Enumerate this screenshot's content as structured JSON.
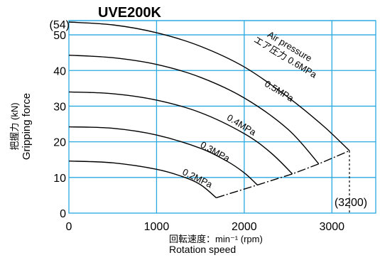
{
  "chart_data": {
    "type": "line",
    "title": "UVE200K",
    "xlabel_lines": [
      "回転速度：min⁻¹ (rpm)",
      "Rotation speed"
    ],
    "ylabel_lines": [
      "把握力 (kN)",
      "Gripping force"
    ],
    "xlim": [
      0,
      3500
    ],
    "ylim": [
      0,
      54
    ],
    "x_ticks": [
      0,
      1000,
      2000,
      3000
    ],
    "x_tick_labels": [
      "0",
      "1000",
      "2000",
      "3000"
    ],
    "y_ticks": [
      0,
      10,
      20,
      30,
      40,
      50
    ],
    "y_tick_labels": [
      "0",
      "10",
      "20",
      "30",
      "40",
      "50"
    ],
    "y_top_label": "(54)",
    "x_marker_label": "(3200)",
    "x_marker_value": 3200,
    "grid": true,
    "series": [
      {
        "name": "0.6MPa",
        "x": [
          0,
          500,
          1000,
          1500,
          2000,
          2500,
          2900,
          3200
        ],
        "y": [
          53.6,
          52.8,
          50.6,
          46.8,
          41.0,
          32.5,
          24.5,
          17.5
        ]
      },
      {
        "name": "0.5MPa",
        "x": [
          0,
          500,
          1000,
          1500,
          2000,
          2500,
          2850
        ],
        "y": [
          44.3,
          43.6,
          41.7,
          38.1,
          32.3,
          23.5,
          13.8
        ]
      },
      {
        "name": "0.4MPa",
        "x": [
          0,
          500,
          1000,
          1500,
          2000,
          2300,
          2550
        ],
        "y": [
          34.0,
          33.5,
          31.7,
          28.2,
          22.3,
          17.0,
          11.0
        ]
      },
      {
        "name": "0.3MPa",
        "x": [
          0,
          500,
          1000,
          1500,
          1800,
          2000,
          2150
        ],
        "y": [
          24.2,
          23.8,
          21.9,
          18.2,
          14.6,
          11.3,
          7.9
        ]
      },
      {
        "name": "0.2MPa",
        "x": [
          0,
          500,
          1000,
          1300,
          1500,
          1680
        ],
        "y": [
          14.6,
          14.1,
          12.3,
          10.2,
          8.0,
          4.3
        ]
      }
    ],
    "limit_line": {
      "x": [
        1680,
        2150,
        2550,
        2850,
        3200
      ],
      "y": [
        4.3,
        7.9,
        11.0,
        13.8,
        17.5
      ]
    },
    "labels": [
      {
        "id": "air_pressure",
        "text": "Air pressure",
        "x": 2500,
        "y": 46.0,
        "angle": 31
      },
      {
        "id": "air_pressure_ja",
        "text": "エア圧力 0.6MPa",
        "x": 2450,
        "y": 43.0,
        "angle": 31
      },
      {
        "id": "p05",
        "text": "0.5MPa",
        "x": 2380,
        "y": 33.5,
        "angle": 31
      },
      {
        "id": "p04",
        "text": "0.4MPa",
        "x": 1950,
        "y": 24.0,
        "angle": 31
      },
      {
        "id": "p03",
        "text": "0.3MPa",
        "x": 1650,
        "y": 16.5,
        "angle": 29
      },
      {
        "id": "p02",
        "text": "0.2MPa",
        "x": 1450,
        "y": 9.0,
        "angle": 26
      }
    ]
  }
}
